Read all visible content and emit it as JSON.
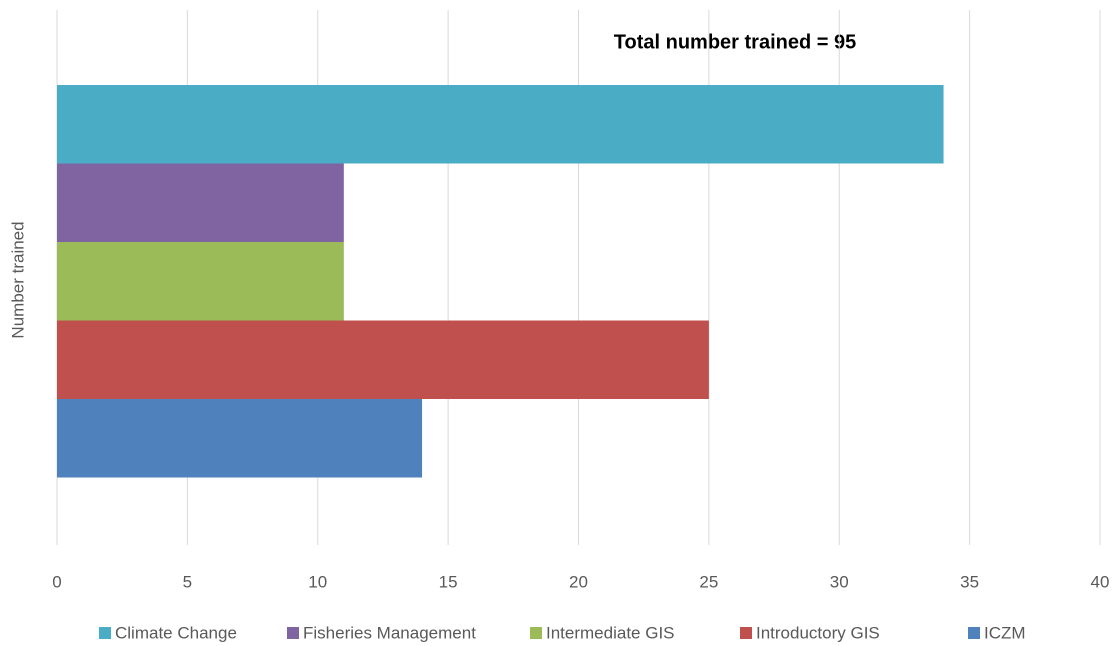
{
  "chart_data": {
    "type": "bar",
    "orientation": "horizontal",
    "annotation": "Total number trained = 95",
    "y_label": "Number trained",
    "series": [
      {
        "name": "Climate Change",
        "color": "#4bacc6",
        "values": [
          34
        ]
      },
      {
        "name": "Fisheries Management",
        "color": "#8064a2",
        "values": [
          11
        ]
      },
      {
        "name": "Intermediate GIS",
        "color": "#9bbb59",
        "values": [
          11
        ]
      },
      {
        "name": "Introductory GIS",
        "color": "#c0504d",
        "values": [
          25
        ]
      },
      {
        "name": "ICZM",
        "color": "#4f81bd",
        "values": [
          14
        ]
      }
    ],
    "xlim": [
      0,
      40
    ],
    "xticks": [
      0,
      5,
      10,
      15,
      20,
      25,
      30,
      35,
      40
    ],
    "grid": true,
    "legend": "bottom"
  }
}
